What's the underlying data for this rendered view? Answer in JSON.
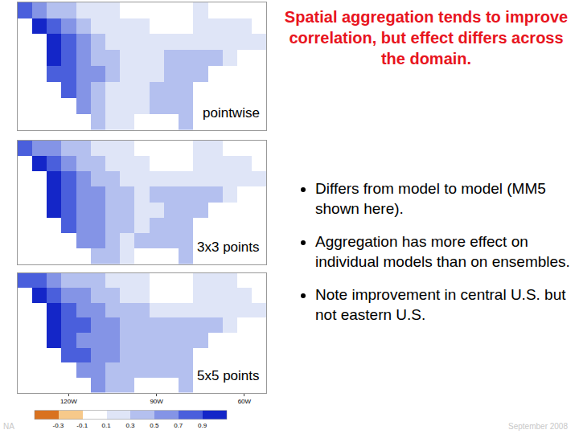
{
  "slide": {
    "title": "Spatial aggregation tends to improve correlation, but effect differs across the domain.",
    "bullets": [
      "Differs from model to model (MM5 shown here).",
      "Aggregation has more effect on individual models than on ensembles.",
      "Note improvement in central U.S. but not eastern U.S."
    ],
    "footer": "September 2008",
    "footer_left": "NA"
  },
  "colorbar": {
    "range": [
      -0.5,
      1.1
    ],
    "ticks": [
      -0.3,
      -0.1,
      0.1,
      0.3,
      0.5,
      0.7,
      0.9
    ],
    "colors": [
      "#d9721f",
      "#f7c98a",
      "#ffffff",
      "#dfe5f7",
      "#b4c0ef",
      "#8494e6",
      "#4a5fdc",
      "#1426c8"
    ]
  },
  "chart_data": [
    {
      "type": "heatmap",
      "title": "pointwise",
      "tick_labels": false,
      "xlim": [
        -137.5,
        -52.5
      ],
      "ylim": [
        22.5,
        62.5
      ],
      "x": [
        -135,
        -130,
        -125,
        -120,
        -115,
        -110,
        -105,
        -100,
        -95,
        -90,
        -85,
        -80,
        -75,
        -70,
        -65,
        -60,
        -55
      ],
      "y": [
        25,
        30,
        35,
        40,
        45,
        50,
        55,
        60
      ],
      "z": [
        [
          null,
          null,
          null,
          null,
          null,
          0.4,
          0.2,
          0.2,
          null,
          null,
          null,
          0.4,
          null,
          null,
          null,
          null,
          null
        ],
        [
          null,
          null,
          null,
          null,
          0.6,
          0.4,
          0.2,
          0.2,
          0.2,
          0.4,
          0.4,
          0.4,
          null,
          null,
          null,
          null,
          null
        ],
        [
          null,
          null,
          null,
          0.8,
          0.6,
          0.4,
          0.2,
          0.2,
          0.2,
          0.4,
          0.4,
          0.4,
          null,
          null,
          null,
          null,
          null
        ],
        [
          null,
          null,
          0.8,
          0.8,
          0.6,
          0.6,
          0.4,
          0.2,
          0.2,
          0.2,
          0.4,
          0.4,
          0.4,
          null,
          null,
          null,
          null
        ],
        [
          null,
          null,
          0.95,
          0.8,
          0.6,
          0.4,
          0.4,
          0.2,
          0.2,
          0.2,
          0.4,
          0.4,
          0.4,
          0.4,
          0.2,
          null,
          null
        ],
        [
          null,
          null,
          0.95,
          0.8,
          0.6,
          0.4,
          0.2,
          0.2,
          0.2,
          0.2,
          0.2,
          0.2,
          0.2,
          0.2,
          0.2,
          0.2,
          0.2
        ],
        [
          null,
          0.95,
          0.8,
          0.6,
          0.4,
          0.2,
          0.2,
          0.2,
          0.2,
          null,
          null,
          null,
          0.2,
          0.2,
          0.2,
          0.2,
          null
        ],
        [
          0.8,
          0.6,
          0.4,
          0.4,
          0.2,
          0.2,
          0.2,
          0.0,
          0.0,
          null,
          null,
          null,
          0.2,
          0.0,
          0.0,
          null,
          null
        ]
      ]
    },
    {
      "type": "heatmap",
      "title": "3x3 points",
      "tick_labels": false,
      "xlim": [
        -137.5,
        -52.5
      ],
      "ylim": [
        22.5,
        62.5
      ],
      "x": [
        -135,
        -130,
        -125,
        -120,
        -115,
        -110,
        -105,
        -100,
        -95,
        -90,
        -85,
        -80,
        -75,
        -70,
        -65,
        -60,
        -55
      ],
      "y": [
        25,
        30,
        35,
        40,
        45,
        50,
        55,
        60
      ],
      "z": [
        [
          null,
          null,
          null,
          null,
          null,
          0.4,
          0.4,
          0.2,
          null,
          null,
          null,
          0.4,
          null,
          null,
          null,
          null,
          null
        ],
        [
          null,
          null,
          null,
          null,
          0.6,
          0.6,
          0.4,
          0.2,
          0.4,
          0.4,
          0.4,
          0.4,
          null,
          null,
          null,
          null,
          null
        ],
        [
          null,
          null,
          null,
          0.8,
          0.6,
          0.6,
          0.4,
          0.4,
          0.2,
          0.4,
          0.4,
          0.4,
          null,
          null,
          null,
          null,
          null
        ],
        [
          null,
          null,
          0.95,
          0.8,
          0.6,
          0.6,
          0.4,
          0.4,
          0.2,
          0.2,
          0.4,
          0.4,
          0.4,
          null,
          null,
          null,
          null
        ],
        [
          null,
          null,
          0.95,
          0.8,
          0.6,
          0.6,
          0.4,
          0.4,
          0.2,
          0.4,
          0.4,
          0.4,
          0.4,
          0.4,
          0.2,
          null,
          null
        ],
        [
          null,
          null,
          0.95,
          0.8,
          0.6,
          0.4,
          0.4,
          0.2,
          0.2,
          0.2,
          0.2,
          0.2,
          0.2,
          0.2,
          0.2,
          0.2,
          0.2
        ],
        [
          null,
          0.95,
          0.8,
          0.6,
          0.4,
          0.4,
          0.2,
          0.2,
          0.2,
          null,
          null,
          null,
          0.2,
          0.2,
          0.2,
          0.2,
          null
        ],
        [
          0.8,
          0.6,
          0.6,
          0.4,
          0.4,
          0.2,
          0.2,
          0.2,
          0.0,
          null,
          null,
          null,
          0.2,
          0.2,
          0.0,
          null,
          null
        ]
      ]
    },
    {
      "type": "heatmap",
      "title": "5x5 points",
      "tick_labels": "x",
      "xlim": [
        -137.5,
        -52.5
      ],
      "ylim": [
        22.5,
        62.5
      ],
      "xticks": [
        {
          "value": -120,
          "label": "120W"
        },
        {
          "value": -90,
          "label": "90W"
        },
        {
          "value": -60,
          "label": "60W"
        }
      ],
      "x": [
        -135,
        -130,
        -125,
        -120,
        -115,
        -110,
        -105,
        -100,
        -95,
        -90,
        -85,
        -80,
        -75,
        -70,
        -65,
        -60,
        -55
      ],
      "y": [
        25,
        30,
        35,
        40,
        45,
        50,
        55,
        60
      ],
      "z": [
        [
          null,
          null,
          null,
          null,
          null,
          0.6,
          0.4,
          0.4,
          null,
          null,
          null,
          0.4,
          null,
          null,
          null,
          null,
          null
        ],
        [
          null,
          null,
          null,
          null,
          0.6,
          0.6,
          0.4,
          0.4,
          0.4,
          0.4,
          0.4,
          0.4,
          null,
          null,
          null,
          null,
          null
        ],
        [
          null,
          null,
          null,
          0.8,
          0.8,
          0.6,
          0.6,
          0.4,
          0.4,
          0.4,
          0.4,
          0.4,
          null,
          null,
          null,
          null,
          null
        ],
        [
          null,
          null,
          0.95,
          0.8,
          0.6,
          0.6,
          0.6,
          0.4,
          0.4,
          0.4,
          0.4,
          0.4,
          0.4,
          null,
          null,
          null,
          null
        ],
        [
          null,
          null,
          0.95,
          0.8,
          0.8,
          0.6,
          0.6,
          0.4,
          0.4,
          0.4,
          0.4,
          0.4,
          0.4,
          0.4,
          0.2,
          null,
          null
        ],
        [
          null,
          null,
          0.95,
          0.8,
          0.6,
          0.6,
          0.4,
          0.4,
          0.4,
          0.2,
          0.2,
          0.2,
          0.2,
          0.2,
          0.2,
          0.2,
          0.2
        ],
        [
          null,
          0.95,
          0.8,
          0.6,
          0.6,
          0.4,
          0.4,
          0.2,
          0.2,
          null,
          null,
          null,
          0.2,
          0.2,
          0.2,
          0.2,
          null
        ],
        [
          0.8,
          0.8,
          0.6,
          0.4,
          0.4,
          0.4,
          0.2,
          0.2,
          0.2,
          null,
          null,
          null,
          0.2,
          0.2,
          0.2,
          null,
          null
        ]
      ]
    }
  ]
}
